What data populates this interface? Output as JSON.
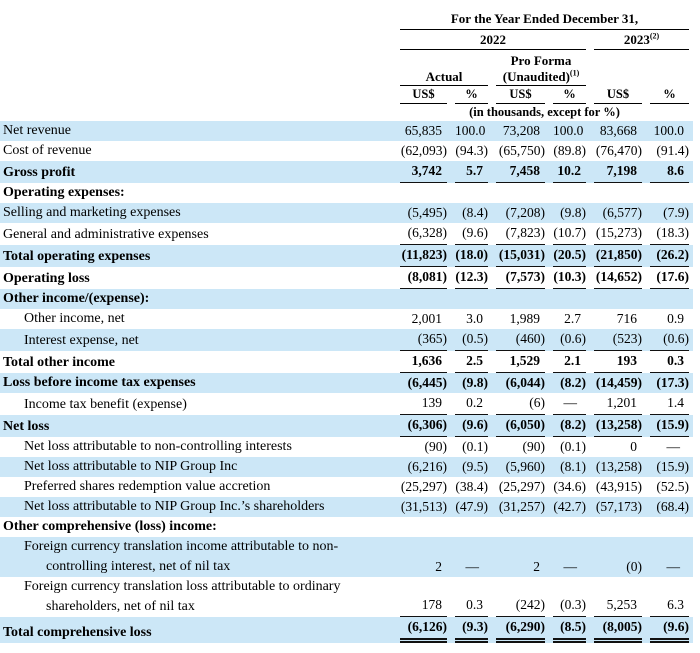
{
  "colors": {
    "row_shade": "#cce7f7",
    "rule": "#111111",
    "text": "#000000"
  },
  "table": {
    "title": "For the Year Ended December 31,",
    "groups": {
      "y2022": {
        "label": "2022",
        "sup": ""
      },
      "y2023": {
        "label": "2023",
        "sup": "(2)"
      },
      "actual": {
        "label": "Actual"
      },
      "proforma": {
        "line1": "Pro Forma",
        "line2": "(Unaudited)",
        "sup": "(1)"
      }
    },
    "col_headers": [
      "US$",
      "%",
      "US$",
      "%",
      "US$",
      "%"
    ],
    "unit_note": "(in thousands, except for %)",
    "rows": [
      {
        "label": "Net revenue",
        "indent": 0,
        "bold": false,
        "shaded": true,
        "underline": "none",
        "values": [
          "65,835",
          "100.0",
          "73,208",
          "100.0",
          "83,668",
          "100.0"
        ]
      },
      {
        "label": "Cost of revenue",
        "indent": 0,
        "bold": false,
        "shaded": false,
        "underline": "none",
        "values": [
          "(62,093)",
          "(94.3)",
          "(65,750)",
          "(89.8)",
          "(76,470)",
          "(91.4)"
        ]
      },
      {
        "label": "Gross profit",
        "indent": 0,
        "bold": true,
        "shaded": true,
        "underline": "single",
        "values": [
          "3,742",
          "5.7",
          "7,458",
          "10.2",
          "7,198",
          "8.6"
        ]
      },
      {
        "label": "Operating expenses:",
        "indent": 0,
        "bold": true,
        "shaded": false,
        "underline": "none",
        "values": []
      },
      {
        "label": "Selling and marketing expenses",
        "indent": 0,
        "bold": false,
        "shaded": true,
        "underline": "none",
        "values": [
          "(5,495)",
          "(8.4)",
          "(7,208)",
          "(9.8)",
          "(6,577)",
          "(7.9)"
        ]
      },
      {
        "label": "General and administrative expenses",
        "indent": 0,
        "bold": false,
        "shaded": false,
        "underline": "single",
        "values": [
          "(6,328)",
          "(9.6)",
          "(7,823)",
          "(10.7)",
          "(15,273)",
          "(18.3)"
        ]
      },
      {
        "label": "Total operating expenses",
        "indent": 0,
        "bold": true,
        "shaded": true,
        "underline": "single",
        "values": [
          "(11,823)",
          "(18.0)",
          "(15,031)",
          "(20.5)",
          "(21,850)",
          "(26.2)"
        ]
      },
      {
        "label": "Operating loss",
        "indent": 0,
        "bold": true,
        "shaded": false,
        "underline": "single",
        "values": [
          "(8,081)",
          "(12.3)",
          "(7,573)",
          "(10.3)",
          "(14,652)",
          "(17.6)"
        ]
      },
      {
        "label": "Other income/(expense):",
        "indent": 0,
        "bold": true,
        "shaded": true,
        "underline": "none",
        "values": []
      },
      {
        "label": "Other income, net",
        "indent": 1,
        "bold": false,
        "shaded": false,
        "underline": "none",
        "values": [
          "2,001",
          "3.0",
          "1,989",
          "2.7",
          "716",
          "0.9"
        ]
      },
      {
        "label": "Interest expense, net",
        "indent": 1,
        "bold": false,
        "shaded": true,
        "underline": "single",
        "values": [
          "(365)",
          "(0.5)",
          "(460)",
          "(0.6)",
          "(523)",
          "(0.6)"
        ]
      },
      {
        "label": "Total other income",
        "indent": 0,
        "bold": true,
        "shaded": false,
        "underline": "single",
        "values": [
          "1,636",
          "2.5",
          "1,529",
          "2.1",
          "193",
          "0.3"
        ]
      },
      {
        "label": "Loss before income tax expenses",
        "indent": 0,
        "bold": true,
        "shaded": true,
        "underline": "none",
        "values": [
          "(6,445)",
          "(9.8)",
          "(6,044)",
          "(8.2)",
          "(14,459)",
          "(17.3)"
        ]
      },
      {
        "label": "Income tax benefit (expense)",
        "indent": 1,
        "bold": false,
        "shaded": false,
        "underline": "single",
        "values": [
          "139",
          "0.2",
          "(6)",
          "—",
          "1,201",
          "1.4"
        ]
      },
      {
        "label": "Net loss",
        "indent": 0,
        "bold": true,
        "shaded": true,
        "underline": "single",
        "values": [
          "(6,306)",
          "(9.6)",
          "(6,050)",
          "(8.2)",
          "(13,258)",
          "(15.9)"
        ]
      },
      {
        "label": "Net loss attributable to non-controlling interests",
        "indent": 1,
        "bold": false,
        "shaded": false,
        "underline": "none",
        "values": [
          "(90)",
          "(0.1)",
          "(90)",
          "(0.1)",
          "0",
          "—"
        ]
      },
      {
        "label": "Net loss attributable to NIP Group Inc",
        "indent": 1,
        "bold": false,
        "shaded": true,
        "underline": "none",
        "values": [
          "(6,216)",
          "(9.5)",
          "(5,960)",
          "(8.1)",
          "(13,258)",
          "(15.9)"
        ]
      },
      {
        "label": "Preferred shares redemption value accretion",
        "indent": 1,
        "bold": false,
        "shaded": false,
        "underline": "none",
        "values": [
          "(25,297)",
          "(38.4)",
          "(25,297)",
          "(34.6)",
          "(43,915)",
          "(52.5)"
        ]
      },
      {
        "label": "Net loss attributable to NIP Group Inc.’s shareholders",
        "indent": 1,
        "bold": false,
        "shaded": true,
        "underline": "none",
        "values": [
          "(31,513)",
          "(47.9)",
          "(31,257)",
          "(42.7)",
          "(57,173)",
          "(68.4)"
        ]
      },
      {
        "label": "Other comprehensive (loss) income:",
        "indent": 0,
        "bold": true,
        "shaded": false,
        "underline": "none",
        "values": []
      },
      {
        "label": [
          "Foreign currency translation income attributable to non-",
          "controlling interest, net of nil tax"
        ],
        "indent": 1,
        "bold": false,
        "shaded": true,
        "underline": "none",
        "values": [
          "2",
          "—",
          "2",
          "—",
          "(0)",
          "—"
        ]
      },
      {
        "label": [
          "Foreign currency translation loss attributable to ordinary",
          "shareholders, net of nil tax"
        ],
        "indent": 1,
        "bold": false,
        "shaded": false,
        "underline": "single",
        "values": [
          "178",
          "0.3",
          "(242)",
          "(0.3)",
          "5,253",
          "6.3"
        ]
      },
      {
        "label": "Total comprehensive loss",
        "indent": 0,
        "bold": true,
        "shaded": true,
        "underline": "double",
        "values": [
          "(6,126)",
          "(9.3)",
          "(6,290)",
          "(8.5)",
          "(8,005)",
          "(9.6)"
        ]
      }
    ]
  }
}
